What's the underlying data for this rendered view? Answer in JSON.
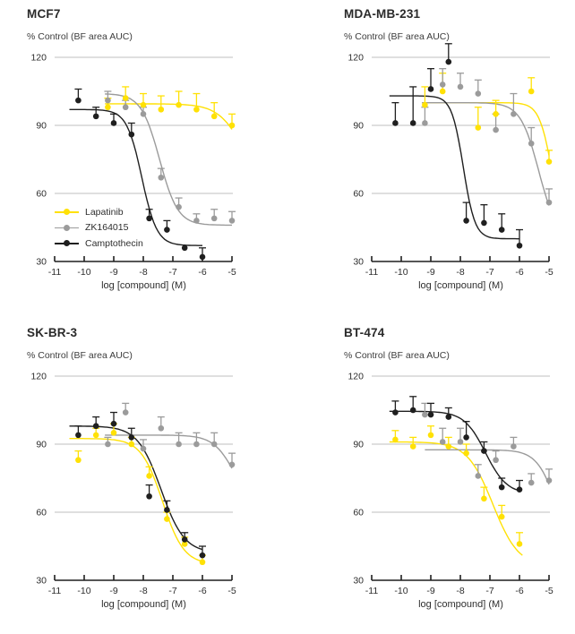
{
  "colors": {
    "lapatinib": "#FFE105",
    "zk164015": "#9B9B9B",
    "camptothecin": "#1F1F1F",
    "grid": "#BFBFBF",
    "axis": "#1F1F1F",
    "text": "#2D2D2D"
  },
  "legend": {
    "position": "inside-left-of-first-panel"
  },
  "chart_data": [
    {
      "type": "scatter",
      "title": "MCF7",
      "ylabel": "% Control (BF area AUC)",
      "xlabel": "log [compound] (M)",
      "xlim": [
        -11,
        -5
      ],
      "ylim": [
        30,
        120
      ],
      "x_tick_labels": [
        "-11",
        "-10",
        "-9",
        "-8",
        "-7",
        "-6",
        "-5"
      ],
      "y_tick_labels": [
        "120",
        "90",
        "60",
        "30"
      ],
      "y_ticks": [
        120,
        90,
        60,
        30
      ],
      "grid": true,
      "series": [
        {
          "name": "Lapatinib",
          "color": "#FFE105",
          "x": [
            -9.2,
            -8.6,
            -8.0,
            -7.4,
            -6.8,
            -6.2,
            -5.6,
            -5.0
          ],
          "y": [
            98,
            102,
            99,
            97,
            99,
            97,
            94,
            90
          ],
          "err_up": [
            4,
            5,
            5,
            6,
            6,
            7,
            6,
            5
          ],
          "fit": {
            "top": 99.5,
            "bottom": 60,
            "logIC50": -4.6,
            "hill": 1.0,
            "x_range": [
              -9.3,
              -5.0
            ]
          }
        },
        {
          "name": "ZK164015",
          "color": "#9B9B9B",
          "x": [
            -9.2,
            -8.6,
            -8.0,
            -7.4,
            -6.8,
            -6.2,
            -5.6,
            -5.0
          ],
          "y": [
            101,
            98,
            95,
            67,
            54,
            48,
            49,
            48
          ],
          "err_up": [
            4,
            3,
            3,
            4,
            4,
            3,
            4,
            4
          ],
          "fit": {
            "top": 104,
            "bottom": 46,
            "logIC50": -7.45,
            "hill": 1.4,
            "x_range": [
              -9.3,
              -5.0
            ]
          }
        },
        {
          "name": "Camptothecin",
          "color": "#1F1F1F",
          "x": [
            -10.2,
            -9.6,
            -9.0,
            -8.4,
            -7.8,
            -7.2,
            -6.6,
            -6.0
          ],
          "y": [
            101,
            94,
            91,
            86,
            49,
            44,
            36,
            32
          ],
          "err_up": [
            5,
            4,
            4,
            5,
            4,
            4,
            0,
            4
          ],
          "fit": {
            "top": 97,
            "bottom": 37,
            "logIC50": -8.05,
            "hill": 1.7,
            "x_range": [
              -10.5,
              -6.0
            ]
          }
        }
      ]
    },
    {
      "type": "scatter",
      "title": "MDA-MB-231",
      "ylabel": "% Control (BF area AUC)",
      "xlabel": "log [compound] (M)",
      "xlim": [
        -11,
        -5
      ],
      "ylim": [
        30,
        120
      ],
      "x_tick_labels": [
        "-11",
        "-10",
        "-9",
        "-8",
        "-7",
        "-6",
        "-5"
      ],
      "y_tick_labels": [
        "120",
        "90",
        "60",
        "30"
      ],
      "y_ticks": [
        120,
        90,
        60,
        30
      ],
      "grid": true,
      "series": [
        {
          "name": "Lapatinib",
          "color": "#FFE105",
          "x": [
            -9.2,
            -8.6,
            -7.4,
            -6.8,
            -5.6,
            -5.0
          ],
          "y": [
            99,
            105,
            89,
            95,
            105,
            74
          ],
          "err_up": [
            8,
            8,
            9,
            6,
            6,
            5
          ],
          "fit": {
            "top": 100,
            "bottom": 40,
            "logIC50": -4.9,
            "hill": 2.0,
            "x_range": [
              -9.3,
              -5.0
            ]
          }
        },
        {
          "name": "ZK164015",
          "color": "#9B9B9B",
          "x": [
            -9.2,
            -8.6,
            -8.0,
            -7.4,
            -6.8,
            -6.2,
            -5.6,
            -5.0
          ],
          "y": [
            91,
            108,
            107,
            104,
            88,
            95,
            82,
            56
          ],
          "err_up": [
            7,
            7,
            6,
            6,
            7,
            9,
            7,
            6
          ],
          "fit": {
            "top": 100,
            "bottom": 40,
            "logIC50": -5.35,
            "hill": 1.4,
            "x_range": [
              -9.3,
              -5.0
            ]
          }
        },
        {
          "name": "Camptothecin",
          "color": "#1F1F1F",
          "x": [
            -10.2,
            -9.6,
            -9.0,
            -8.4,
            -7.8,
            -7.2,
            -6.6,
            -6.0
          ],
          "y": [
            91,
            91,
            106,
            118,
            48,
            47,
            44,
            37
          ],
          "err_up": [
            9,
            16,
            9,
            8,
            8,
            8,
            7,
            7
          ],
          "fit": {
            "top": 103,
            "bottom": 40,
            "logIC50": -7.9,
            "hill": 2.2,
            "x_range": [
              -10.4,
              -6.0
            ]
          }
        }
      ]
    },
    {
      "type": "scatter",
      "title": "SK-BR-3",
      "ylabel": "% Control (BF area AUC)",
      "xlabel": "log [compound] (M)",
      "xlim": [
        -11,
        -5
      ],
      "ylim": [
        30,
        120
      ],
      "x_tick_labels": [
        "-11",
        "-10",
        "-9",
        "-8",
        "-7",
        "-6",
        "-5"
      ],
      "y_tick_labels": [
        "120",
        "90",
        "60",
        "30"
      ],
      "y_ticks": [
        120,
        90,
        60,
        30
      ],
      "grid": true,
      "series": [
        {
          "name": "Lapatinib",
          "color": "#FFE105",
          "x": [
            -10.2,
            -9.6,
            -9.0,
            -8.4,
            -7.8,
            -7.2,
            -6.6,
            -6.0
          ],
          "y": [
            83,
            94,
            95,
            90,
            76,
            57,
            46,
            38
          ],
          "err_up": [
            4,
            3,
            4,
            3,
            4,
            3,
            3,
            3
          ],
          "fit": {
            "top": 92.5,
            "bottom": 37,
            "logIC50": -7.35,
            "hill": 1.2,
            "x_range": [
              -10.5,
              -6.0
            ]
          }
        },
        {
          "name": "ZK164015",
          "color": "#9B9B9B",
          "x": [
            -9.2,
            -8.6,
            -8.0,
            -7.4,
            -6.8,
            -6.2,
            -5.6,
            -5.0
          ],
          "y": [
            90,
            104,
            88,
            97,
            90,
            90,
            90,
            81
          ],
          "err_up": [
            3,
            4,
            4,
            5,
            5,
            5,
            5,
            5
          ],
          "fit": {
            "top": 94,
            "bottom": 60,
            "logIC50": -4.9,
            "hill": 1.2,
            "x_range": [
              -9.3,
              -5.0
            ]
          }
        },
        {
          "name": "Camptothecin",
          "color": "#1F1F1F",
          "x": [
            -10.2,
            -9.6,
            -9.0,
            -8.4,
            -7.8,
            -7.2,
            -6.6,
            -6.0
          ],
          "y": [
            94,
            98,
            99,
            93,
            67,
            61,
            48,
            41
          ],
          "err_up": [
            4,
            4,
            5,
            4,
            5,
            4,
            3,
            4
          ],
          "fit": {
            "top": 98,
            "bottom": 42,
            "logIC50": -7.4,
            "hill": 1.1,
            "x_range": [
              -10.5,
              -6.0
            ]
          }
        }
      ]
    },
    {
      "type": "scatter",
      "title": "BT-474",
      "ylabel": "% Control (BF area AUC)",
      "xlabel": "log [compound] (M)",
      "xlim": [
        -11,
        -5
      ],
      "ylim": [
        30,
        120
      ],
      "x_tick_labels": [
        "-11",
        "-10",
        "-9",
        "-8",
        "-7",
        "-6",
        "-5"
      ],
      "y_tick_labels": [
        "120",
        "90",
        "60",
        "30"
      ],
      "y_ticks": [
        120,
        90,
        60,
        30
      ],
      "grid": true,
      "series": [
        {
          "name": "Lapatinib",
          "color": "#FFE105",
          "x": [
            -10.2,
            -9.6,
            -9.0,
            -8.4,
            -7.8,
            -7.2,
            -6.6,
            -6.0
          ],
          "y": [
            92,
            89,
            94,
            89,
            86,
            66,
            58,
            46
          ],
          "err_up": [
            4,
            4,
            4,
            4,
            4,
            5,
            5,
            5
          ],
          "fit": {
            "top": 91,
            "bottom": 36,
            "logIC50": -6.9,
            "hill": 1.0,
            "x_range": [
              -10.4,
              -5.9
            ]
          }
        },
        {
          "name": "ZK164015",
          "color": "#9B9B9B",
          "x": [
            -9.2,
            -8.6,
            -8.0,
            -7.4,
            -6.8,
            -6.2,
            -5.6,
            -5.0
          ],
          "y": [
            103,
            91,
            91,
            76,
            83,
            89,
            73,
            74
          ],
          "err_up": [
            5,
            6,
            6,
            5,
            4,
            4,
            4,
            5
          ],
          "fit": {
            "top": 87.5,
            "bottom": 40,
            "logIC50": -4.75,
            "hill": 1.3,
            "x_range": [
              -9.2,
              -5.0
            ]
          }
        },
        {
          "name": "Camptothecin",
          "color": "#1F1F1F",
          "x": [
            -10.2,
            -9.6,
            -9.0,
            -8.4,
            -7.8,
            -7.2,
            -6.6,
            -6.0
          ],
          "y": [
            104,
            105,
            103,
            102,
            93,
            87,
            71,
            70
          ],
          "err_up": [
            5,
            6,
            5,
            4,
            7,
            4,
            4,
            4
          ],
          "fit": {
            "top": 104.5,
            "bottom": 68,
            "logIC50": -7.15,
            "hill": 1.2,
            "x_range": [
              -10.4,
              -6.0
            ]
          }
        }
      ]
    }
  ]
}
